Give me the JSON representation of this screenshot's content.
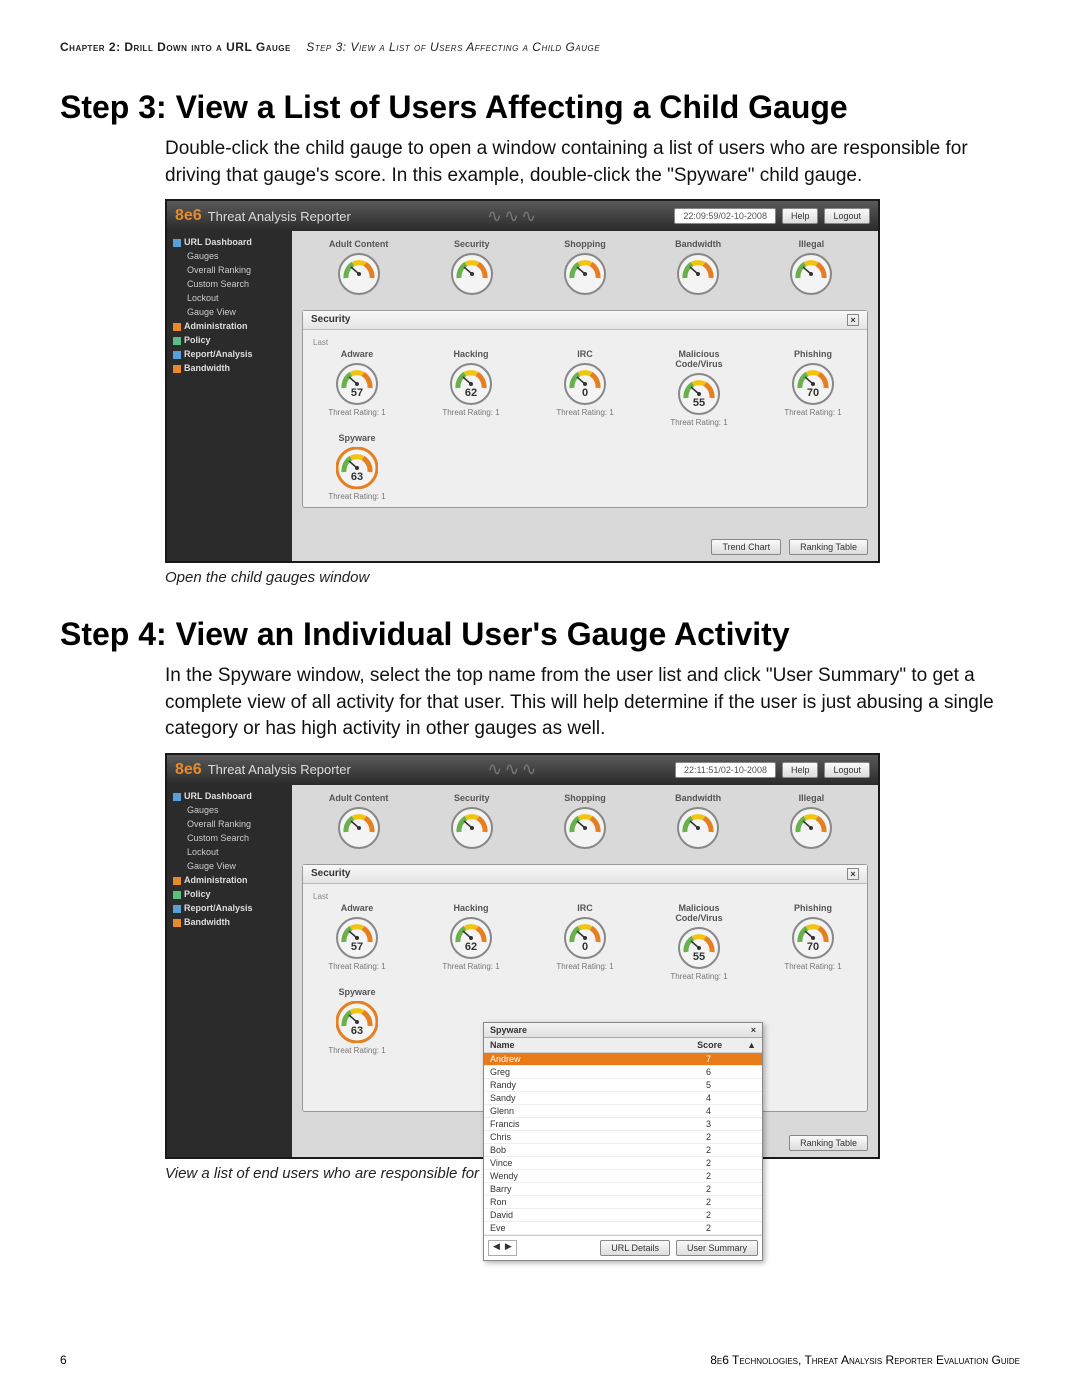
{
  "breadcrumb": {
    "chapter": "Chapter 2: Drill Down into a URL Gauge",
    "step": "Step 3: View a List of Users Affecting a Child Gauge"
  },
  "step3": {
    "title": "Step 3: View a List of Users Affecting a Child Gauge",
    "body": "Double-click the child gauge to open a window containing a list of users who are responsible for driving that gauge's score. In this example, double-click the \"Spyware\" child gauge.",
    "caption": "Open the child gauges window"
  },
  "step4": {
    "title": "Step 4: View an Individual User's Gauge Activity",
    "body": "In the Spyware window, select the top name from the user list and click \"User Summary\" to get a complete view of all activity for that user. This will help determine if the user is just abusing a single category or has high activity in other gauges as well.",
    "caption": "View a list of end users who are responsible for a gauge's activity"
  },
  "footer": {
    "page": "6",
    "right": "8e6 Technologies, Threat Analysis Reporter Evaluation Guide"
  },
  "app": {
    "logo": "8e6",
    "title": "Threat Analysis Reporter",
    "timestamp1": "22:09:59/02-10-2008",
    "timestamp2": "22:11:51/02-10-2008",
    "help": "Help",
    "logout": "Logout"
  },
  "sidebar": {
    "top": "URL Dashboard",
    "items": [
      "Gauges",
      "Overall Ranking",
      "Custom Search",
      "Lockout",
      "Gauge View"
    ],
    "groups": [
      {
        "label": "Administration"
      },
      {
        "label": "Policy"
      },
      {
        "label": "Report/Analysis"
      },
      {
        "label": "Bandwidth"
      }
    ]
  },
  "gauges_top": [
    {
      "label": "Adult Content"
    },
    {
      "label": "Security"
    },
    {
      "label": "Shopping"
    },
    {
      "label": "Bandwidth"
    },
    {
      "label": "Illegal"
    }
  ],
  "security_panel": {
    "title": "Security",
    "row1": [
      {
        "label": "Adware",
        "value": "57",
        "threat": "Threat Rating: 1"
      },
      {
        "label": "Hacking",
        "value": "62",
        "threat": "Threat Rating: 1"
      },
      {
        "label": "IRC",
        "value": "0",
        "threat": "Threat Rating: 1"
      },
      {
        "label": "Malicious Code/Virus",
        "value": "55",
        "threat": "Threat Rating: 1"
      },
      {
        "label": "Phishing",
        "value": "70",
        "threat": "Threat Rating: 1"
      }
    ],
    "row2": [
      {
        "label": "Spyware",
        "value": "63",
        "threat": "Threat Rating: 1"
      }
    ]
  },
  "buttons": {
    "trend": "Trend Chart",
    "ranking": "Ranking Table",
    "url_details": "URL Details",
    "user_summary": "User Summary"
  },
  "userlist": {
    "title": "Spyware",
    "col_name": "Name",
    "col_score": "Score",
    "rows": [
      {
        "name": "Andrew",
        "score": "7",
        "sel": true
      },
      {
        "name": "Greg",
        "score": "6"
      },
      {
        "name": "Randy",
        "score": "5"
      },
      {
        "name": "Sandy",
        "score": "4"
      },
      {
        "name": "Glenn",
        "score": "4"
      },
      {
        "name": "Francis",
        "score": "3"
      },
      {
        "name": "Chris",
        "score": "2"
      },
      {
        "name": "Bob",
        "score": "2"
      },
      {
        "name": "Vince",
        "score": "2"
      },
      {
        "name": "Wendy",
        "score": "2"
      },
      {
        "name": "Barry",
        "score": "2"
      },
      {
        "name": "Ron",
        "score": "2"
      },
      {
        "name": "David",
        "score": "2"
      },
      {
        "name": "Eve",
        "score": "2"
      }
    ]
  },
  "gauge_colors": {
    "green": "#6ab04c",
    "yellow": "#f1c40f",
    "orange": "#e67e22",
    "red": "#c0392b",
    "rim": "#888"
  }
}
